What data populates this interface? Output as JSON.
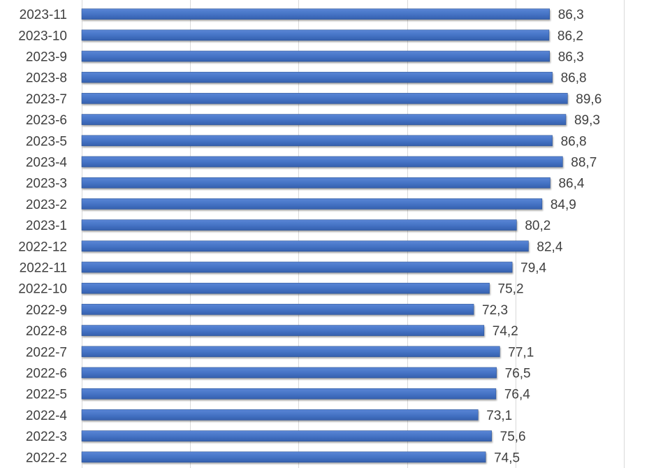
{
  "chart_data": {
    "type": "bar",
    "orientation": "horizontal",
    "categories": [
      "2023-11",
      "2023-10",
      "2023-9",
      "2023-8",
      "2023-7",
      "2023-6",
      "2023-5",
      "2023-4",
      "2023-3",
      "2023-2",
      "2023-1",
      "2022-12",
      "2022-11",
      "2022-10",
      "2022-9",
      "2022-8",
      "2022-7",
      "2022-6",
      "2022-5",
      "2022-4",
      "2022-3",
      "2022-2"
    ],
    "values": [
      86.3,
      86.2,
      86.3,
      86.8,
      89.6,
      89.3,
      86.8,
      88.7,
      86.4,
      84.9,
      80.2,
      82.4,
      79.4,
      75.2,
      72.3,
      74.2,
      77.1,
      76.5,
      76.4,
      73.1,
      75.6,
      74.5
    ],
    "value_labels": [
      "86,3",
      "86,2",
      "86,3",
      "86,8",
      "89,6",
      "89,3",
      "86,8",
      "88,7",
      "86,4",
      "84,9",
      "80,2",
      "82,4",
      "79,4",
      "75,2",
      "72,3",
      "74,2",
      "77,1",
      "76,5",
      "76,4",
      "73,1",
      "75,6",
      "74,5"
    ],
    "xlim": [
      0,
      100
    ],
    "gridlines": [
      0,
      20,
      40,
      60,
      80,
      100
    ],
    "grid": true,
    "legend": "none",
    "bar_color": "#4472C4",
    "bar_edge_color": "#2F5597",
    "grid_color": "#D9D9D9",
    "label_color": "#404040",
    "title": "",
    "xlabel": "",
    "ylabel": ""
  }
}
